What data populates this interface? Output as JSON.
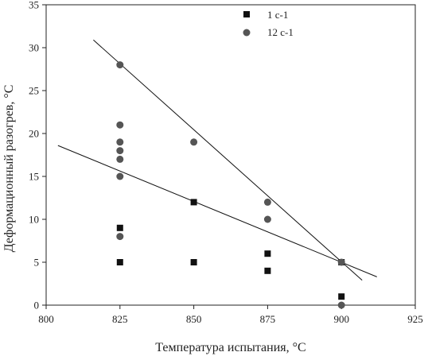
{
  "chart_data": {
    "type": "scatter",
    "xlabel": "Температура испытания, °С",
    "ylabel": "Деформационный разогрев, °С",
    "xlim": [
      800,
      925
    ],
    "ylim": [
      0,
      35
    ],
    "xticks": [
      800,
      825,
      850,
      875,
      900,
      925
    ],
    "yticks": [
      0,
      5,
      10,
      15,
      20,
      25,
      30,
      35
    ],
    "legend_position": "top-right",
    "series": [
      {
        "name": "1 с-1",
        "marker": "square",
        "color": "#111111",
        "points": [
          [
            825,
            9
          ],
          [
            825,
            5
          ],
          [
            850,
            12
          ],
          [
            850,
            5
          ],
          [
            875,
            6
          ],
          [
            875,
            4
          ],
          [
            900,
            5
          ],
          [
            900,
            1
          ]
        ]
      },
      {
        "name": "12 с-1",
        "marker": "circle",
        "color": "#555555",
        "points": [
          [
            825,
            28
          ],
          [
            825,
            21
          ],
          [
            825,
            19
          ],
          [
            825,
            18
          ],
          [
            825,
            17
          ],
          [
            825,
            15
          ],
          [
            825,
            8
          ],
          [
            850,
            19
          ],
          [
            875,
            12
          ],
          [
            875,
            10
          ],
          [
            900,
            5
          ],
          [
            900,
            0
          ]
        ]
      }
    ],
    "fit_lines": [
      {
        "series": "1 с-1",
        "from": [
          804,
          18.6
        ],
        "to": [
          912,
          3.3
        ]
      },
      {
        "series": "12 с-1",
        "from": [
          816,
          30.9
        ],
        "to": [
          907,
          2.9
        ]
      }
    ]
  }
}
